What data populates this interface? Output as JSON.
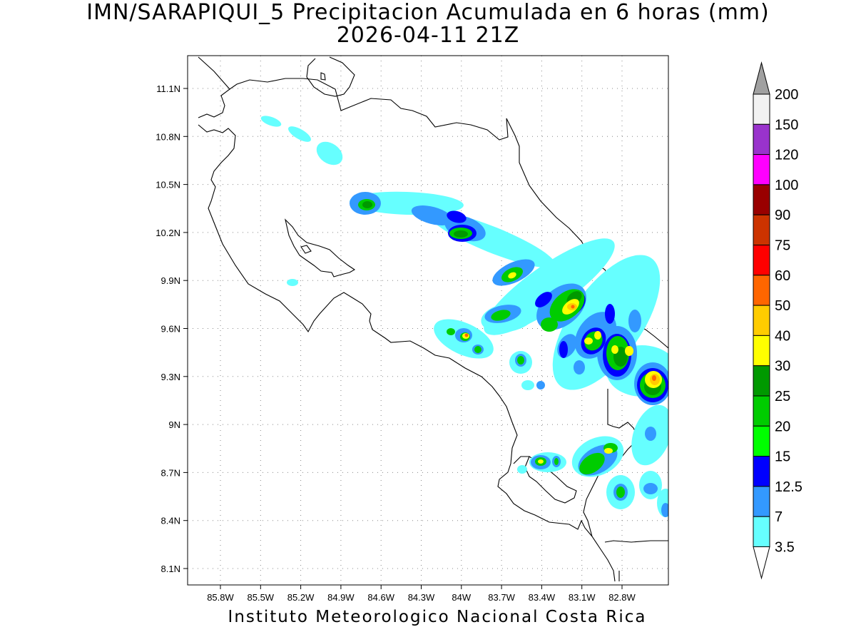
{
  "title_line1": "IMN/SARAPIQUI_5 Precipitacion Acumulada en 6 horas (mm)",
  "title_line2": "2026-04-11 21Z",
  "footer": "Instituto Meteorologico Nacional Costa Rica",
  "map": {
    "lon_labels": [
      "85.8W",
      "85.5W",
      "85.2W",
      "84.9W",
      "84.6W",
      "84.3W",
      "84W",
      "83.7W",
      "83.4W",
      "83.1W",
      "82.8W"
    ],
    "lat_labels": [
      "11.1N",
      "10.8N",
      "10.5N",
      "10.2N",
      "9.9N",
      "9.6N",
      "9.3N",
      "9N",
      "8.7N",
      "8.4N",
      "8.1N"
    ],
    "gridlines": true
  },
  "colorbar": {
    "labels": [
      "200",
      "150",
      "120",
      "100",
      "90",
      "75",
      "60",
      "50",
      "40",
      "30",
      "25",
      "20",
      "15",
      "12.5",
      "7",
      "3.5"
    ],
    "colors": [
      "#a0a0a0",
      "#f2f2f2",
      "#9933cc",
      "#ff00ff",
      "#990000",
      "#cc3300",
      "#ff0000",
      "#ff6600",
      "#ffcc00",
      "#ffff00",
      "#009900",
      "#00cc00",
      "#00ff00",
      "#0000ff",
      "#3399ff",
      "#66ffff",
      "#ffffff"
    ]
  }
}
